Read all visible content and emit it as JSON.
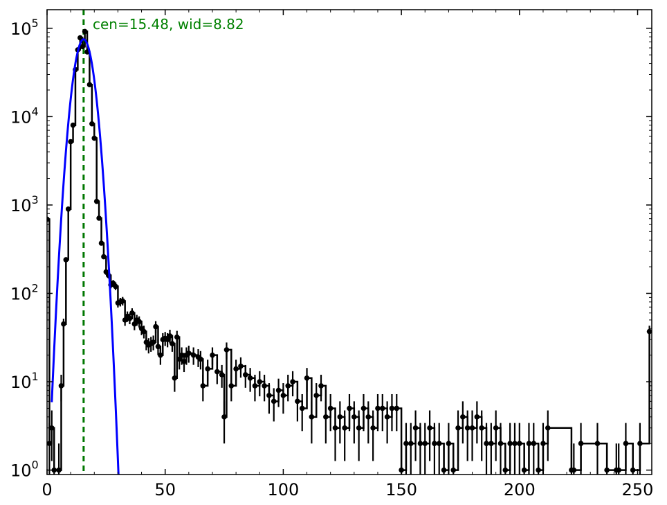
{
  "chart_data": {
    "type": "scatter",
    "title": "",
    "xlabel": "",
    "ylabel": "",
    "xlim": [
      0,
      256
    ],
    "ylim_log10": [
      -0.05,
      5.21
    ],
    "yscale": "log",
    "grid": false,
    "legend": "none",
    "x_ticks": [
      0,
      50,
      100,
      150,
      200,
      250
    ],
    "x_tick_labels": [
      "0",
      "50",
      "100",
      "150",
      "200",
      "250"
    ],
    "y_ticks": [
      1,
      10,
      100,
      1000,
      10000,
      100000
    ],
    "y_tick_labels": [
      {
        "base": "10",
        "exp": "0"
      },
      {
        "base": "10",
        "exp": "1"
      },
      {
        "base": "10",
        "exp": "2"
      },
      {
        "base": "10",
        "exp": "3"
      },
      {
        "base": "10",
        "exp": "4"
      },
      {
        "base": "10",
        "exp": "5"
      }
    ],
    "annotation": {
      "text": "cen=15.48, wid=8.82",
      "color": "#008000"
    },
    "center_line": {
      "x": 15.48,
      "color": "#007700",
      "style": "dashed"
    },
    "fit_curve": {
      "type": "gaussian",
      "center": 15.48,
      "amplitude": 75000,
      "sigma": 3.1,
      "color": "#0000ff"
    },
    "series": [
      {
        "color": "#000000",
        "x": [
          0,
          1,
          2,
          3,
          5,
          6,
          7,
          8,
          9,
          10,
          11,
          12,
          13,
          14,
          15,
          16,
          17,
          18,
          19,
          20,
          21,
          22,
          23,
          24,
          25,
          26,
          27,
          28,
          29,
          30,
          31,
          32,
          33,
          34,
          35,
          36,
          37,
          38,
          39,
          40,
          41,
          42,
          43,
          44,
          45,
          46,
          47,
          48,
          49,
          50,
          51,
          52,
          53,
          54,
          55,
          56,
          57,
          58,
          59,
          60,
          62,
          64,
          65,
          66,
          68,
          70,
          72,
          74,
          75,
          76,
          78,
          80,
          82,
          84,
          86,
          88,
          90,
          92,
          94,
          96,
          98,
          100,
          102,
          104,
          106,
          108,
          110,
          112,
          114,
          116,
          118,
          120,
          122,
          124,
          126,
          128,
          130,
          132,
          134,
          136,
          138,
          140,
          142,
          144,
          146,
          148,
          150,
          152,
          154,
          156,
          158,
          160,
          162,
          164,
          166,
          168,
          170,
          172,
          174,
          176,
          178,
          180,
          182,
          184,
          186,
          188,
          190,
          192,
          194,
          196,
          198,
          200,
          202,
          204,
          206,
          208,
          210,
          212,
          222,
          223,
          226,
          233,
          237,
          241,
          242,
          245,
          248,
          251,
          255
        ],
        "y": [
          690,
          2,
          3,
          1,
          1,
          9,
          45,
          240,
          900,
          5200,
          8000,
          34000,
          57000,
          78000,
          62000,
          92000,
          54000,
          23000,
          8300,
          5700,
          1100,
          710,
          370,
          260,
          175,
          160,
          125,
          130,
          120,
          78,
          80,
          82,
          50,
          55,
          52,
          60,
          45,
          50,
          48,
          40,
          37,
          28,
          26,
          27,
          28,
          42,
          25,
          20,
          30,
          31,
          30,
          33,
          27,
          11,
          32,
          18,
          20,
          17,
          20,
          21,
          20,
          19,
          18,
          9,
          14,
          20,
          13,
          12,
          4,
          23,
          9,
          14,
          15,
          12,
          11,
          9,
          10,
          9,
          7,
          6,
          8,
          7,
          9,
          10,
          6,
          5,
          11,
          4,
          7,
          9,
          4,
          5,
          3,
          4,
          3,
          5,
          4,
          3,
          5,
          4,
          3,
          5,
          5,
          4,
          5,
          5,
          1,
          2,
          2,
          3,
          2,
          2,
          3,
          2,
          2,
          1,
          2,
          1,
          3,
          4,
          3,
          3,
          4,
          3,
          2,
          2,
          3,
          2,
          1,
          2,
          2,
          2,
          1,
          2,
          2,
          1,
          2,
          3,
          1,
          1,
          2,
          2,
          1,
          1,
          1,
          2,
          1,
          2,
          37
        ]
      }
    ]
  }
}
